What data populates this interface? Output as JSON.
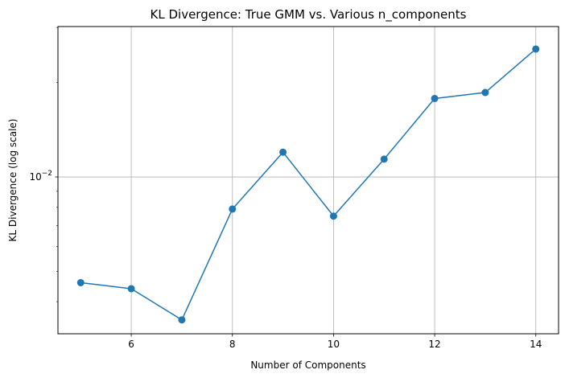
{
  "chart_data": {
    "type": "line",
    "title": "KL Divergence: True GMM vs. Various n_components",
    "xlabel": "Number of Components",
    "ylabel": "KL Divergence (log scale)",
    "yscale": "log",
    "grid": true,
    "xlim": [
      4.55,
      14.45
    ],
    "ylim": [
      0.00316,
      0.0302
    ],
    "x_ticks": [
      6,
      8,
      10,
      12,
      14
    ],
    "y_ticks": [
      {
        "value": 0.01,
        "base": "10",
        "exp": "−2"
      }
    ],
    "series": [
      {
        "color": "#1f77b4",
        "marker": "circle",
        "x": [
          5,
          6,
          7,
          8,
          9,
          10,
          11,
          12,
          13,
          14
        ],
        "y": [
          0.0046,
          0.0044,
          0.0035,
          0.0079,
          0.012,
          0.0075,
          0.0114,
          0.0178,
          0.0186,
          0.0256
        ]
      }
    ]
  }
}
